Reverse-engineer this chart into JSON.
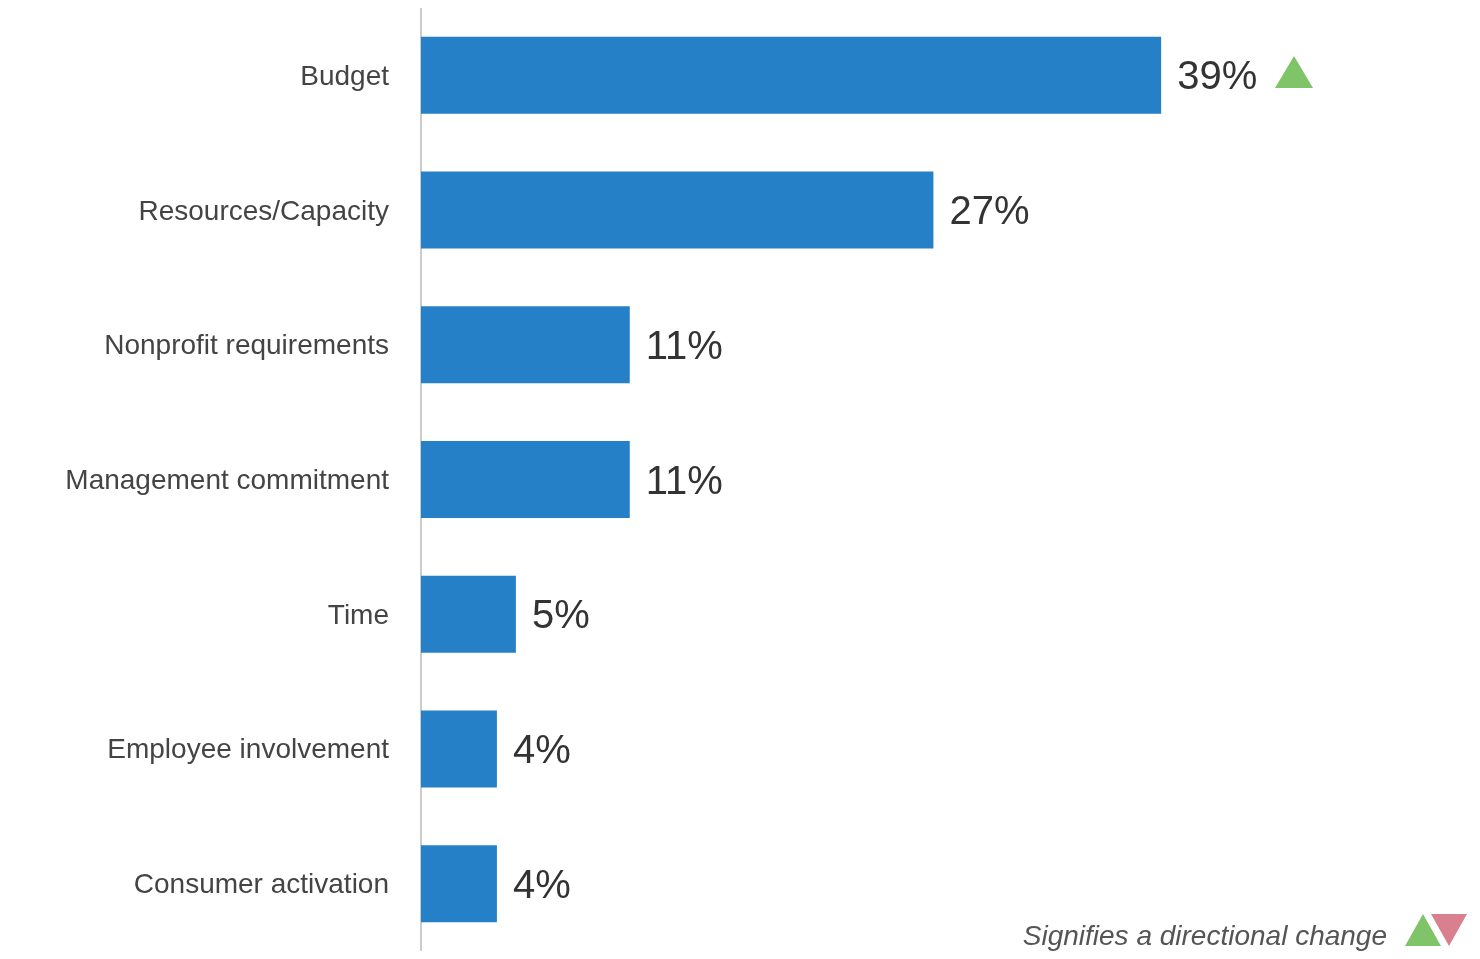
{
  "chart_data": {
    "type": "bar",
    "orientation": "horizontal",
    "categories": [
      "Budget",
      "Resources/Capacity",
      "Nonprofit requirements",
      "Management commitment",
      "Time",
      "Employee involvement",
      "Consumer activation"
    ],
    "values": [
      39,
      27,
      11,
      11,
      5,
      4,
      4
    ],
    "value_labels": [
      "39%",
      "27%",
      "11%",
      "11%",
      "5%",
      "4%",
      "4%"
    ],
    "color": "#2580c8",
    "tick_labels": "y",
    "annotations": [
      "Signifies a directional change"
    ]
  }
}
